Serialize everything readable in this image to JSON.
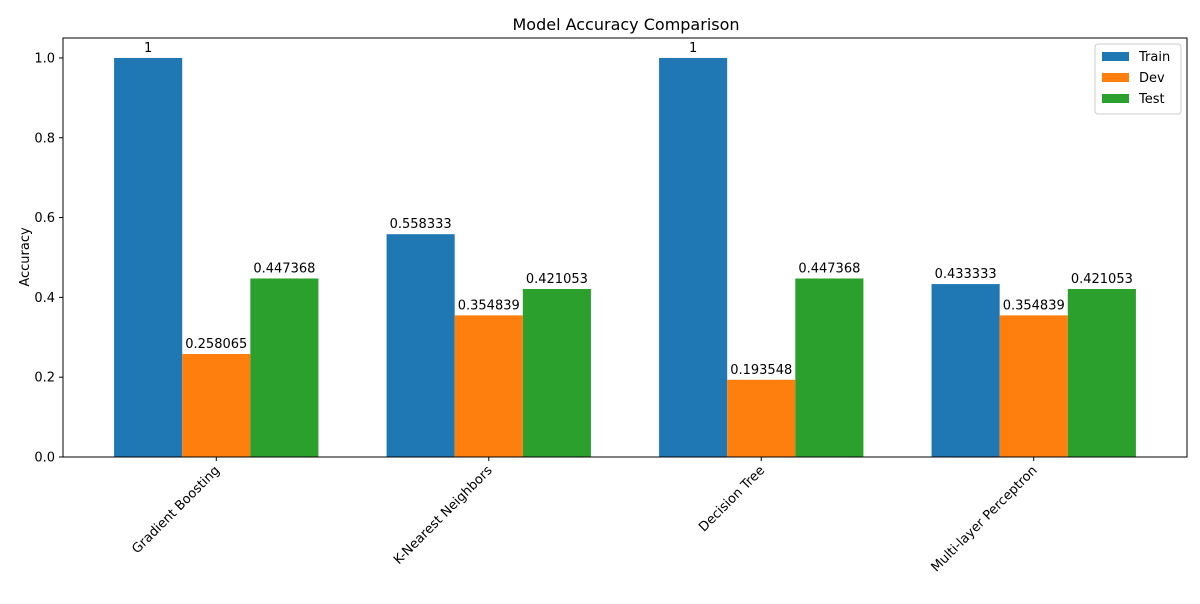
{
  "chart_data": {
    "type": "bar",
    "title": "Model Accuracy Comparison",
    "xlabel": "",
    "ylabel": "Accuracy",
    "categories": [
      "Gradient Boosting",
      "K-Nearest Neighbors",
      "Decision Tree",
      "Multi-layer Perceptron"
    ],
    "series": [
      {
        "name": "Train",
        "color": "#1f77b4",
        "values": [
          1.0,
          0.558333,
          1.0,
          0.433333
        ],
        "labels": [
          "1",
          "0.558333",
          "1",
          "0.433333"
        ]
      },
      {
        "name": "Dev",
        "color": "#ff7f0e",
        "values": [
          0.258065,
          0.354839,
          0.193548,
          0.354839
        ],
        "labels": [
          "0.258065",
          "0.354839",
          "0.193548",
          "0.354839"
        ]
      },
      {
        "name": "Test",
        "color": "#2ca02c",
        "values": [
          0.447368,
          0.421053,
          0.447368,
          0.421053
        ],
        "labels": [
          "0.447368",
          "0.421053",
          "0.447368",
          "0.421053"
        ]
      }
    ],
    "ylim": [
      0,
      1.05
    ],
    "yticks": [
      0.0,
      0.2,
      0.4,
      0.6,
      0.8,
      1.0
    ],
    "ytick_labels": [
      "0.0",
      "0.2",
      "0.4",
      "0.6",
      "0.8",
      "1.0"
    ],
    "legend": "top-right",
    "grid": false
  }
}
